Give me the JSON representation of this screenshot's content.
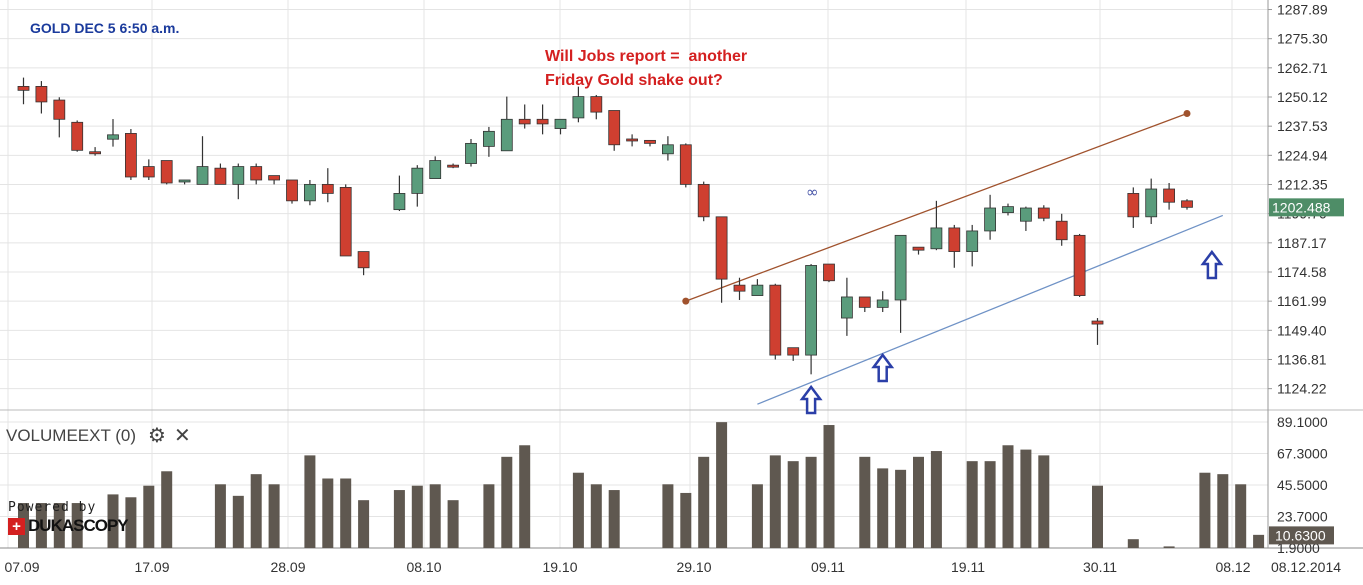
{
  "chart_data": [
    {
      "type": "candlestick",
      "title": "GOLD DEC 5 6:50 a.m.",
      "annotation": [
        "Will Jobs report =  another",
        "Friday Gold shake out?"
      ],
      "y_ticks": [
        "1287.89",
        "1275.30",
        "1262.71",
        "1250.12",
        "1237.53",
        "1224.94",
        "1212.35",
        "1199.76",
        "1187.17",
        "1174.58",
        "1161.99",
        "1149.40",
        "1136.81",
        "1124.22"
      ],
      "ylim": [
        1115,
        1292
      ],
      "current_price": "1202.488",
      "x_ticks": [
        "07.09",
        "17.09",
        "28.09",
        "08.10",
        "19.10",
        "29.10",
        "09.11",
        "19.11",
        "30.11",
        "08.12",
        "08.12.2014"
      ],
      "colors": {
        "up": "#5a9c7c",
        "down": "#cf3f30",
        "wick": "#333333",
        "channel_upper": "#a0522d",
        "channel_lower": "#6f92c6",
        "arrow": "#2b3fa8"
      },
      "candles": [
        {
          "o": 1254.7,
          "h": 1258.5,
          "l": 1247.0,
          "c": 1253.0
        },
        {
          "o": 1254.7,
          "h": 1257.0,
          "l": 1243.0,
          "c": 1248.0
        },
        {
          "o": 1248.8,
          "h": 1250.0,
          "l": 1232.7,
          "c": 1240.5
        },
        {
          "o": 1239.2,
          "h": 1240.0,
          "l": 1226.5,
          "c": 1227.1
        },
        {
          "o": 1226.5,
          "h": 1228.5,
          "l": 1224.8,
          "c": 1225.6
        },
        {
          "o": 1231.9,
          "h": 1240.6,
          "l": 1228.7,
          "c": 1233.8
        },
        {
          "o": 1234.4,
          "h": 1236.3,
          "l": 1214.3,
          "c": 1215.6
        },
        {
          "o": 1220.1,
          "h": 1223.2,
          "l": 1214.3,
          "c": 1215.6
        },
        {
          "o": 1222.7,
          "h": 1222.7,
          "l": 1212.4,
          "c": 1213.0
        },
        {
          "o": 1214.3,
          "h": 1214.3,
          "l": 1212.4,
          "c": 1214.3
        },
        {
          "o": 1212.4,
          "h": 1233.2,
          "l": 1212.4,
          "c": 1220.1
        },
        {
          "o": 1219.4,
          "h": 1221.4,
          "l": 1212.4,
          "c": 1212.4
        },
        {
          "o": 1212.4,
          "h": 1221.4,
          "l": 1206.0,
          "c": 1220.1
        },
        {
          "o": 1220.1,
          "h": 1221.4,
          "l": 1212.4,
          "c": 1214.3
        },
        {
          "o": 1216.2,
          "h": 1216.2,
          "l": 1212.4,
          "c": 1214.3
        },
        {
          "o": 1214.3,
          "h": 1214.3,
          "l": 1204.1,
          "c": 1205.3
        },
        {
          "o": 1205.3,
          "h": 1214.3,
          "l": 1203.4,
          "c": 1212.4
        },
        {
          "o": 1212.4,
          "h": 1219.4,
          "l": 1204.7,
          "c": 1208.5
        },
        {
          "o": 1211.1,
          "h": 1212.4,
          "l": 1181.5,
          "c": 1181.5
        },
        {
          "o": 1183.4,
          "h": 1183.4,
          "l": 1173.2,
          "c": 1176.4
        },
        {
          "o": 1201.5,
          "h": 1216.2,
          "l": 1200.9,
          "c": 1208.5
        },
        {
          "o": 1208.5,
          "h": 1220.7,
          "l": 1202.8,
          "c": 1219.4
        },
        {
          "o": 1214.9,
          "h": 1224.5,
          "l": 1214.9,
          "c": 1222.7
        },
        {
          "o": 1220.7,
          "h": 1221.4,
          "l": 1219.4,
          "c": 1220.1
        },
        {
          "o": 1221.4,
          "h": 1232.0,
          "l": 1220.1,
          "c": 1230.1
        },
        {
          "o": 1228.8,
          "h": 1237.2,
          "l": 1224.3,
          "c": 1235.3
        },
        {
          "o": 1226.9,
          "h": 1250.3,
          "l": 1226.9,
          "c": 1240.5
        },
        {
          "o": 1240.5,
          "h": 1246.9,
          "l": 1236.5,
          "c": 1238.5
        },
        {
          "o": 1240.5,
          "h": 1246.9,
          "l": 1234.0,
          "c": 1238.5
        },
        {
          "o": 1236.5,
          "h": 1240.5,
          "l": 1234.0,
          "c": 1240.5
        },
        {
          "o": 1241.1,
          "h": 1254.6,
          "l": 1239.2,
          "c": 1250.3
        },
        {
          "o": 1250.3,
          "h": 1251.0,
          "l": 1240.5,
          "c": 1243.6
        },
        {
          "o": 1244.3,
          "h": 1244.3,
          "l": 1226.9,
          "c": 1229.5
        },
        {
          "o": 1232.0,
          "h": 1234.0,
          "l": 1228.8,
          "c": 1231.4
        },
        {
          "o": 1231.4,
          "h": 1231.4,
          "l": 1228.8,
          "c": 1230.1
        },
        {
          "o": 1225.6,
          "h": 1233.2,
          "l": 1222.7,
          "c": 1229.5
        },
        {
          "o": 1229.5,
          "h": 1230.1,
          "l": 1211.1,
          "c": 1212.4
        },
        {
          "o": 1212.4,
          "h": 1213.6,
          "l": 1196.5,
          "c": 1198.4
        },
        {
          "o": 1198.4,
          "h": 1198.4,
          "l": 1161.3,
          "c": 1171.5
        },
        {
          "o": 1168.9,
          "h": 1172.1,
          "l": 1162.5,
          "c": 1166.3
        },
        {
          "o": 1164.4,
          "h": 1171.5,
          "l": 1164.4,
          "c": 1168.9
        },
        {
          "o": 1168.9,
          "h": 1169.5,
          "l": 1136.8,
          "c": 1138.7
        },
        {
          "o": 1141.9,
          "h": 1141.9,
          "l": 1136.2,
          "c": 1138.7
        },
        {
          "o": 1138.7,
          "h": 1178.0,
          "l": 1130.4,
          "c": 1177.4
        },
        {
          "o": 1178.0,
          "h": 1178.0,
          "l": 1170.2,
          "c": 1170.8
        },
        {
          "o": 1154.7,
          "h": 1172.1,
          "l": 1147.0,
          "c": 1163.8
        },
        {
          "o": 1163.8,
          "h": 1163.8,
          "l": 1157.3,
          "c": 1159.3
        },
        {
          "o": 1159.3,
          "h": 1166.3,
          "l": 1157.3,
          "c": 1162.5
        },
        {
          "o": 1162.5,
          "h": 1190.4,
          "l": 1148.3,
          "c": 1190.4
        },
        {
          "o": 1185.3,
          "h": 1185.3,
          "l": 1182.1,
          "c": 1184.0
        },
        {
          "o": 1184.6,
          "h": 1205.3,
          "l": 1184.0,
          "c": 1193.6
        },
        {
          "o": 1193.6,
          "h": 1194.9,
          "l": 1176.4,
          "c": 1183.4
        },
        {
          "o": 1183.4,
          "h": 1194.9,
          "l": 1177.0,
          "c": 1192.3
        },
        {
          "o": 1192.3,
          "h": 1207.9,
          "l": 1188.5,
          "c": 1202.2
        },
        {
          "o": 1200.2,
          "h": 1204.1,
          "l": 1199.0,
          "c": 1202.8
        },
        {
          "o": 1196.5,
          "h": 1202.8,
          "l": 1192.3,
          "c": 1202.2
        },
        {
          "o": 1202.2,
          "h": 1203.4,
          "l": 1196.5,
          "c": 1197.8
        },
        {
          "o": 1196.5,
          "h": 1199.7,
          "l": 1185.9,
          "c": 1188.5
        },
        {
          "o": 1190.4,
          "h": 1191.0,
          "l": 1163.8,
          "c": 1164.4
        },
        {
          "o": 1153.4,
          "h": 1154.7,
          "l": 1143.1,
          "c": 1152.1
        },
        {
          "o": 1208.5,
          "h": 1211.1,
          "l": 1193.6,
          "c": 1198.4
        },
        {
          "o": 1198.4,
          "h": 1214.9,
          "l": 1195.3,
          "c": 1210.4
        },
        {
          "o": 1210.4,
          "h": 1213.0,
          "l": 1201.5,
          "c": 1204.7
        },
        {
          "o": 1205.3,
          "h": 1206.0,
          "l": 1201.5,
          "c": 1202.5
        }
      ],
      "candle_days": [
        0,
        1,
        2,
        3,
        4,
        5,
        6,
        7,
        8,
        9,
        10,
        11,
        12,
        13,
        14,
        15,
        16,
        17,
        18,
        19,
        21,
        22,
        23,
        24,
        25,
        26,
        27,
        28,
        29,
        30,
        31,
        32,
        33,
        34,
        35,
        36,
        37,
        38,
        39,
        40,
        41,
        42,
        43,
        44,
        45,
        46,
        47,
        48,
        49,
        50,
        51,
        52,
        53,
        54,
        55,
        56,
        57,
        58,
        59,
        60,
        62,
        63,
        64,
        65
      ],
      "channel": {
        "upper": {
          "from": {
            "day": 37,
            "price": 1162.0
          },
          "to": {
            "day": 65,
            "price": 1243.0
          }
        },
        "lower": {
          "from": {
            "day": 41,
            "price": 1117.5
          },
          "to": {
            "day": 67,
            "price": 1199.0
          }
        }
      },
      "arrows_days": [
        44,
        48,
        66
      ],
      "infinity_label": "∞"
    },
    {
      "type": "bar",
      "title": "VOLUMEEXT (0)",
      "y_ticks": [
        "89.1000",
        "67.3000",
        "45.5000",
        "23.7000",
        "1.9000"
      ],
      "ylim": [
        1.9,
        89.1
      ],
      "current_value": "10.6300",
      "values": [
        33,
        33,
        33,
        33,
        1.9,
        39,
        37,
        45,
        55,
        1.9,
        1.9,
        46,
        38,
        53,
        46,
        1.9,
        66,
        50,
        50,
        35,
        1.9,
        42,
        45,
        46,
        35,
        1.9,
        46,
        65,
        73,
        1.9,
        1.9,
        54,
        46,
        42,
        1.9,
        1.9,
        46,
        40,
        65,
        89,
        1.9,
        46,
        66,
        62,
        65,
        87,
        1.9,
        65,
        57,
        56,
        65,
        69,
        1.9,
        62,
        62,
        73,
        70,
        66,
        1.9,
        1.9,
        45,
        1.9,
        8,
        1.9,
        3,
        1.9,
        54,
        53,
        46,
        11
      ]
    }
  ],
  "powered_by": "Powered by",
  "brand": "DUKASCOPY",
  "brand_cross": "+",
  "gear_icon": "⚙",
  "close_icon": "✕"
}
